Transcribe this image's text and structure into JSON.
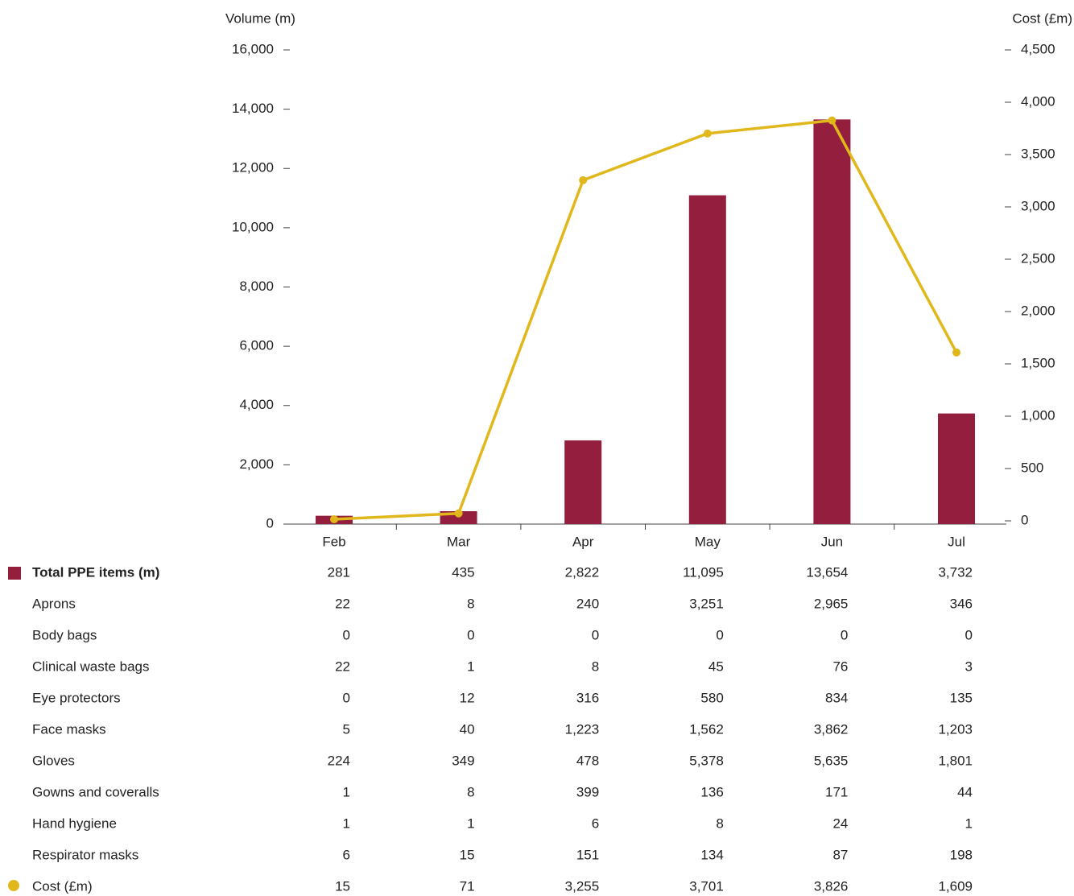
{
  "chart_data": {
    "type": "bar",
    "y_label": "Volume (m)",
    "y2_label": "Cost (£m)",
    "categories": [
      "Feb",
      "Mar",
      "Apr",
      "May",
      "Jun",
      "Jul"
    ],
    "series": [
      {
        "name": "Total PPE items (m)",
        "type": "bar",
        "color": "#931e3d",
        "values": [
          281,
          435,
          2822,
          11095,
          13654,
          3732
        ],
        "value_labels": [
          "281",
          "435",
          "2,822",
          "11,095",
          "13,654",
          "3,732"
        ]
      },
      {
        "name": "Cost (£m)",
        "type": "line",
        "axis": "y2",
        "color": "#e0b81c",
        "values": [
          15,
          71,
          3255,
          3701,
          3826,
          1609
        ],
        "value_labels": [
          "15",
          "71",
          "3,255",
          "3,701",
          "3,826",
          "1,609"
        ]
      }
    ],
    "breakdown": [
      {
        "name": "Aprons",
        "values": [
          22,
          8,
          240,
          3251,
          2965,
          346
        ],
        "value_labels": [
          "22",
          "8",
          "240",
          "3,251",
          "2,965",
          "346"
        ]
      },
      {
        "name": "Body bags",
        "values": [
          0,
          0,
          0,
          0,
          0,
          0
        ]
      },
      {
        "name": "Clinical waste bags",
        "values": [
          22,
          1,
          8,
          45,
          76,
          3
        ]
      },
      {
        "name": "Eye protectors",
        "values": [
          0,
          12,
          316,
          580,
          834,
          135
        ]
      },
      {
        "name": "Face masks",
        "values": [
          5,
          40,
          1223,
          1562,
          3862,
          1203
        ],
        "value_labels": [
          "5",
          "40",
          "1,223",
          "1,562",
          "3,862",
          "1,203"
        ]
      },
      {
        "name": "Gloves",
        "values": [
          224,
          349,
          478,
          5378,
          5635,
          1801
        ],
        "value_labels": [
          "224",
          "349",
          "478",
          "5,378",
          "5,635",
          "1,801"
        ]
      },
      {
        "name": "Gowns and coveralls",
        "values": [
          1,
          8,
          399,
          136,
          171,
          44
        ]
      },
      {
        "name": "Hand hygiene",
        "values": [
          1,
          1,
          6,
          8,
          24,
          1
        ]
      },
      {
        "name": "Respirator masks",
        "values": [
          6,
          15,
          151,
          134,
          87,
          198
        ]
      }
    ],
    "ylim": [
      0,
      16000
    ],
    "yticks": [
      0,
      {
        "value": 2000,
        "label": "2,000"
      },
      {
        "value": 4000,
        "label": "4,000"
      },
      {
        "value": 6000,
        "label": "6,000"
      },
      {
        "value": 8000,
        "label": "8,000"
      },
      {
        "value": 10000,
        "label": "10,000"
      },
      {
        "value": 12000,
        "label": "12,000"
      },
      {
        "value": 14000,
        "label": "14,000"
      },
      {
        "value": 16000,
        "label": "16,000"
      }
    ],
    "y2lim": [
      0,
      4500
    ],
    "y2ticks": [
      0,
      500,
      {
        "value": 1000,
        "label": "1,000"
      },
      {
        "value": 1500,
        "label": "1,500"
      },
      {
        "value": 2000,
        "label": "2,000"
      },
      {
        "value": 2500,
        "label": "2,500"
      },
      {
        "value": 3000,
        "label": "3,000"
      },
      {
        "value": 3500,
        "label": "3,500"
      },
      {
        "value": 4000,
        "label": "4,000"
      },
      {
        "value": 4500,
        "label": "4,500"
      }
    ]
  }
}
